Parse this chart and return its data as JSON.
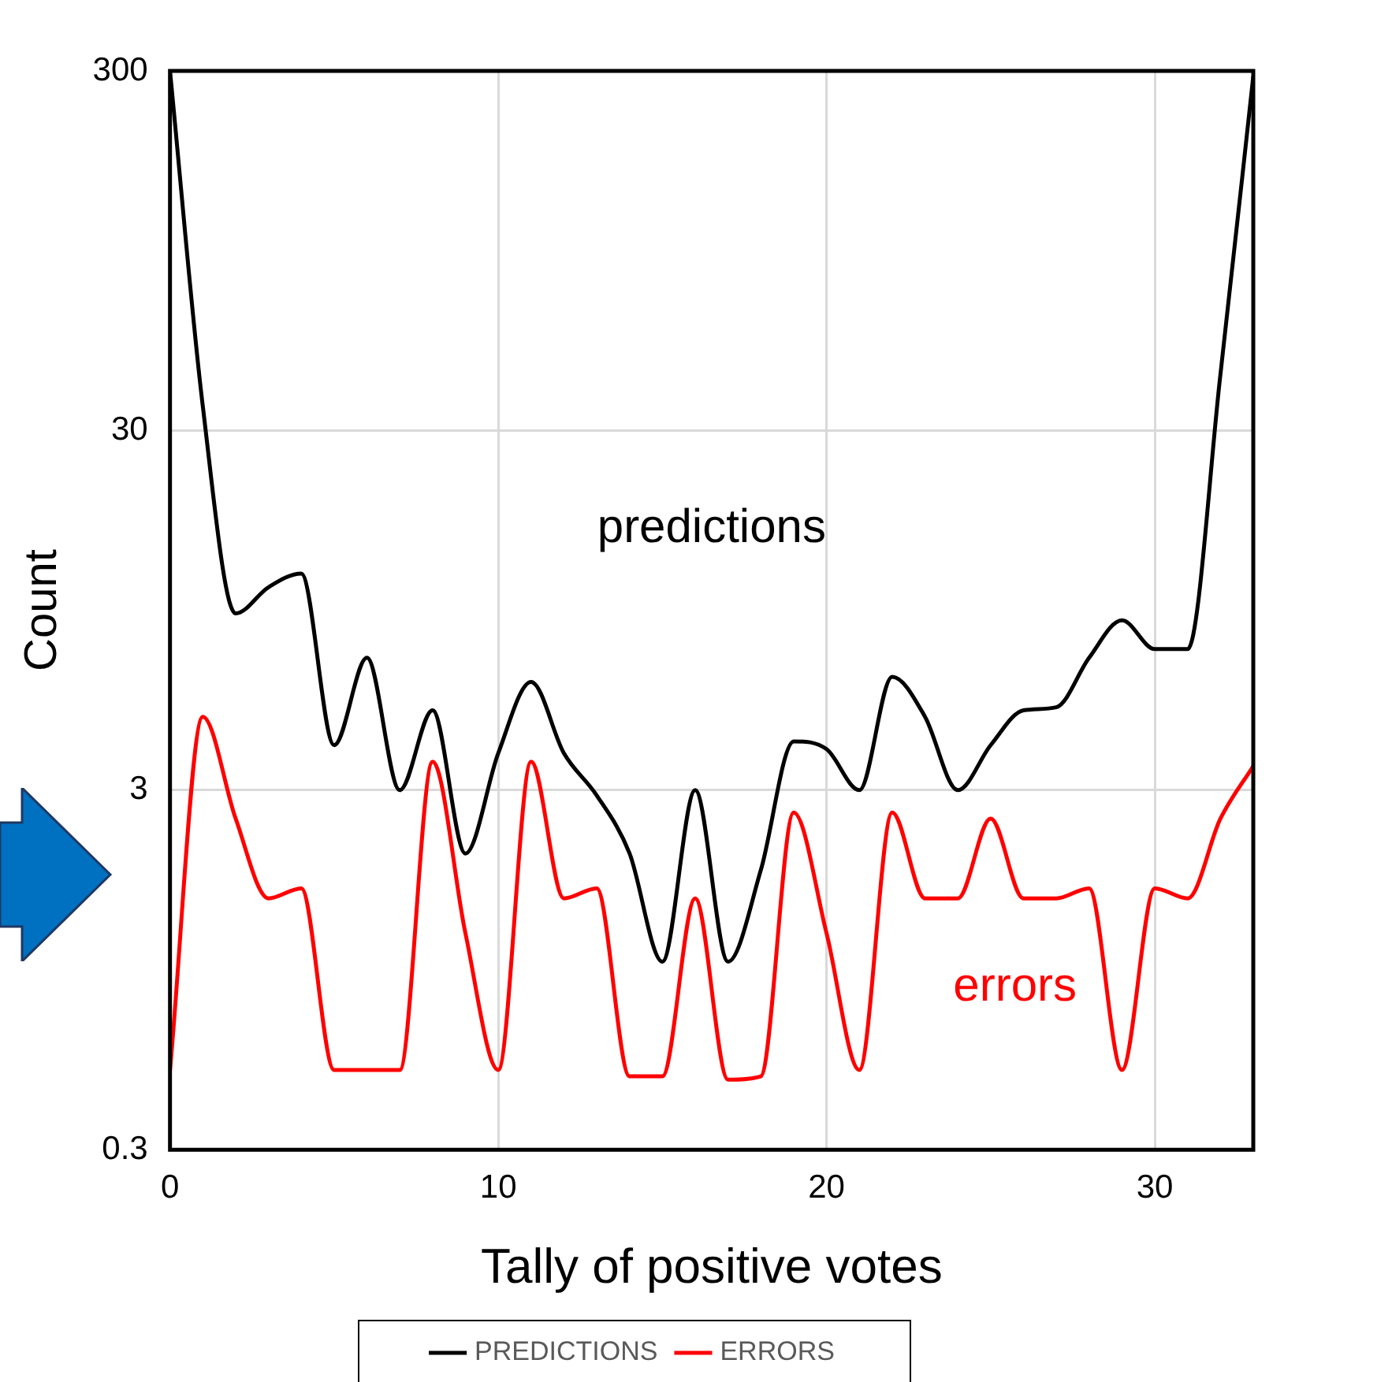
{
  "chart_data": {
    "type": "line",
    "xlabel": "Tally of positive votes",
    "ylabel": "Count",
    "x": [
      0,
      1,
      2,
      3,
      4,
      5,
      6,
      7,
      8,
      9,
      10,
      11,
      12,
      13,
      14,
      15,
      16,
      17,
      18,
      19,
      20,
      21,
      22,
      23,
      24,
      25,
      26,
      27,
      28,
      29,
      30,
      31,
      32,
      33
    ],
    "series": [
      {
        "name": "PREDICTIONS",
        "color": "#000000",
        "values": [
          300,
          35,
          9.3,
          11,
          12,
          4,
          7,
          3,
          5,
          2,
          3.8,
          6,
          3.8,
          2.9,
          2,
          1,
          3,
          1,
          1.8,
          4.1,
          3.9,
          3,
          6.2,
          4.8,
          3,
          4,
          5,
          5.1,
          7,
          8.9,
          7.4,
          7.4,
          43,
          290
        ]
      },
      {
        "name": "ERRORS",
        "color": "#ff0000",
        "values": [
          0.5,
          4.8,
          2.5,
          1.5,
          1.6,
          0.5,
          0.5,
          0.5,
          3.6,
          1.2,
          0.5,
          3.6,
          1.5,
          1.6,
          0.48,
          0.48,
          1.5,
          0.47,
          0.48,
          2.6,
          1.2,
          0.5,
          2.6,
          1.5,
          1.5,
          2.5,
          1.5,
          1.5,
          1.6,
          0.5,
          1.6,
          1.5,
          2.5,
          3.5
        ]
      }
    ],
    "annotations": [
      "predictions",
      "errors"
    ],
    "xlim": [
      0,
      33
    ],
    "xticks": [
      0,
      10,
      20,
      30
    ],
    "ylim": [
      0.3,
      300
    ],
    "yticks": [
      0.3,
      3,
      30,
      300
    ],
    "log": "y",
    "grid": true,
    "legend": "bottom",
    "marker": "none",
    "line_style": "solid"
  }
}
